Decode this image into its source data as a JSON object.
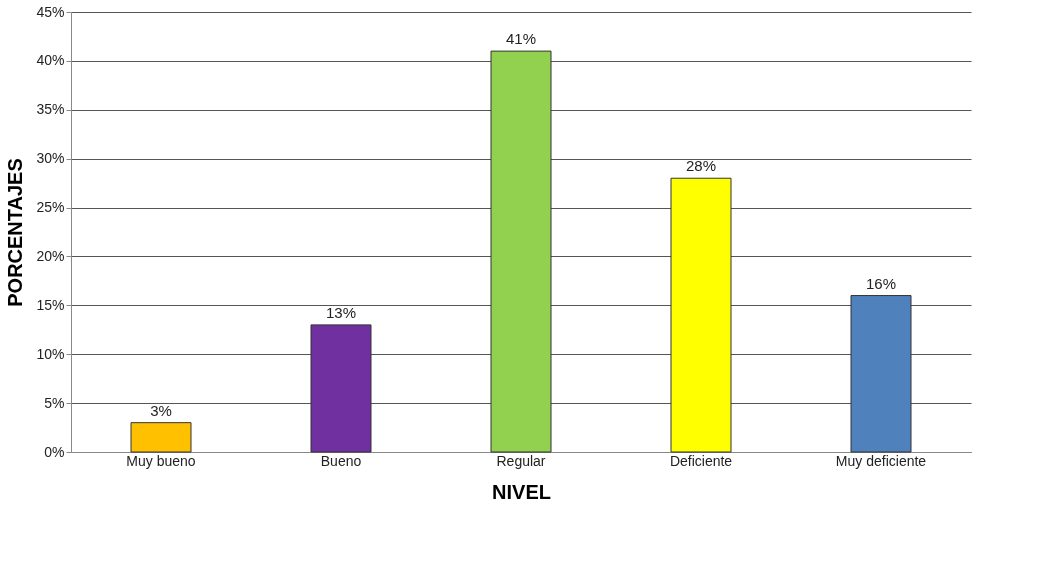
{
  "chart_data": {
    "type": "bar",
    "xlabel": "NIVEL",
    "ylabel": "PORCENTAJES",
    "categories": [
      "Muy bueno",
      "Bueno",
      "Regular",
      "Deficiente",
      "Muy deficiente"
    ],
    "values": [
      3,
      13,
      41,
      28,
      16
    ],
    "colors": [
      "#ffc000",
      "#7030a0",
      "#92d050",
      "#ffff00",
      "#4f81bd"
    ],
    "value_labels": [
      "3%",
      "13%",
      "41%",
      "28%",
      "16%"
    ],
    "ylim": [
      0,
      45
    ],
    "yticks": [
      {
        "value": 0,
        "label": "0%"
      },
      {
        "value": 5,
        "label": "5%"
      },
      {
        "value": 10,
        "label": "10%"
      },
      {
        "value": 15,
        "label": "15%"
      },
      {
        "value": 20,
        "label": "20%"
      },
      {
        "value": 25,
        "label": "25%"
      },
      {
        "value": 30,
        "label": "30%"
      },
      {
        "value": 35,
        "label": "35%"
      },
      {
        "value": 40,
        "label": "40%"
      },
      {
        "value": 45,
        "label": "45%"
      }
    ],
    "grid": "y",
    "legend": false
  }
}
